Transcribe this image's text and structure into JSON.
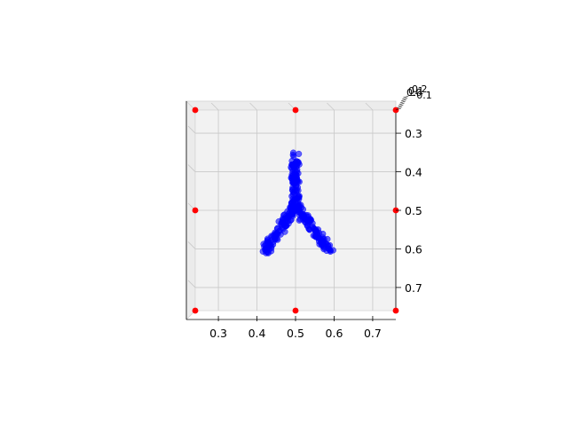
{
  "chart_data": {
    "type": "scatter",
    "projection": "3d",
    "view": "top-down",
    "title": "",
    "xlabel": "",
    "ylabel": "",
    "zlabel": "",
    "xlim": [
      0.24,
      0.76
    ],
    "ylim": [
      0.24,
      0.76
    ],
    "x_ticks": [
      "0.3",
      "0.4",
      "0.5",
      "0.6",
      "0.7"
    ],
    "x_tick_values": [
      0.3,
      0.4,
      0.5,
      0.6,
      0.7
    ],
    "y_ticks": [
      "0.3",
      "0.4",
      "0.5",
      "0.6",
      "0.7"
    ],
    "y_tick_values": [
      0.3,
      0.4,
      0.5,
      0.6,
      0.7
    ],
    "z_ticks": [
      "0.2",
      "0.1",
      "0.0",
      "−0.1"
    ],
    "grid": true,
    "pane_color": "#f2f2f2",
    "series": [
      {
        "color": "#0000ff",
        "marker": "o",
        "alpha": 0.6,
        "segments": [
          {
            "from": [
              0.499,
              0.355
            ],
            "to": [
              0.499,
              0.445
            ]
          },
          {
            "from": [
              0.5,
              0.445
            ],
            "to": [
              0.5,
              0.49
            ]
          },
          {
            "from": [
              0.5,
              0.49
            ],
            "to": [
              0.42,
              0.605
            ]
          },
          {
            "from": [
              0.5,
              0.49
            ],
            "to": [
              0.59,
              0.605
            ]
          }
        ],
        "points_per_segment": [
          70,
          30,
          110,
          110
        ]
      },
      {
        "color": "#ff0000",
        "marker": "o",
        "alpha": 1.0,
        "points": [
          [
            0.24,
            0.24
          ],
          [
            0.5,
            0.24
          ],
          [
            0.76,
            0.24
          ],
          [
            0.24,
            0.5
          ],
          [
            0.76,
            0.5
          ],
          [
            0.24,
            0.76
          ],
          [
            0.5,
            0.76
          ],
          [
            0.76,
            0.76
          ]
        ]
      }
    ]
  }
}
